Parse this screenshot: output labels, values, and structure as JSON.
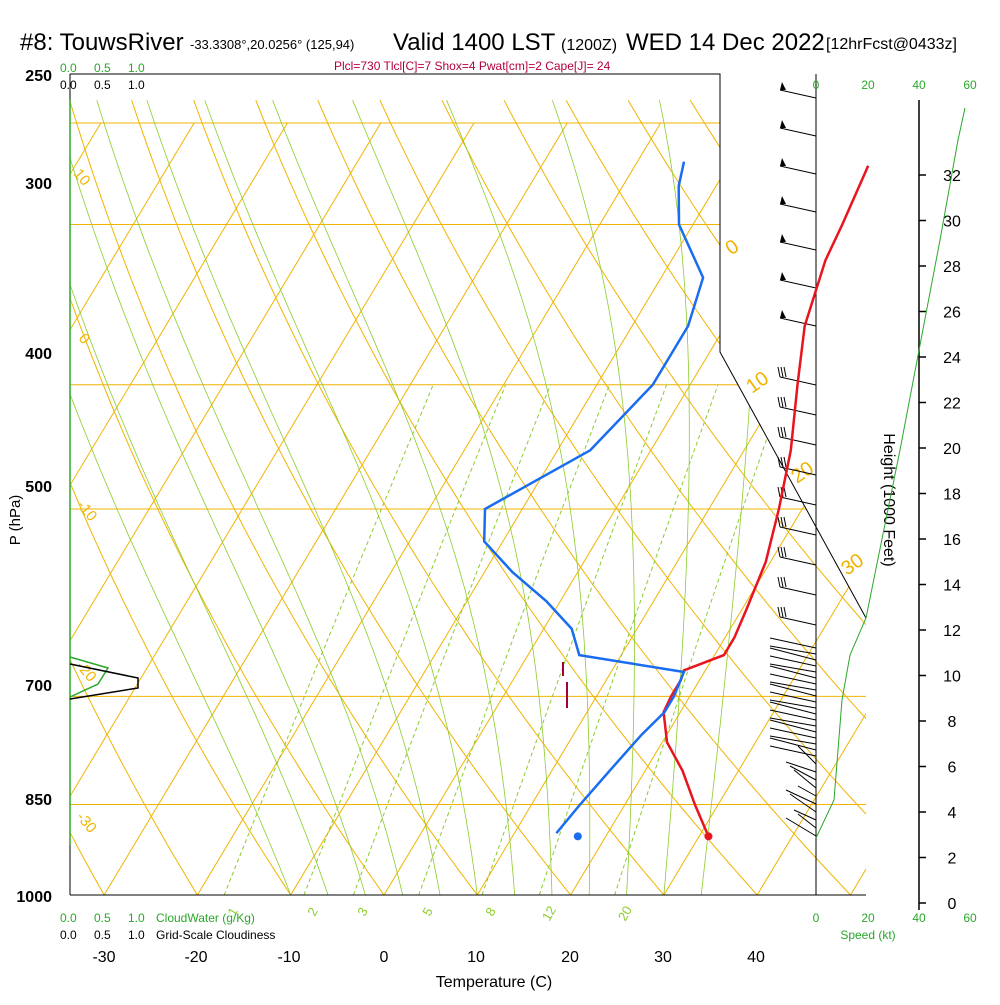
{
  "header": {
    "station": "#8: TouwsRiver",
    "coords": "-33.3308°,20.0256° (125,94)",
    "valid": "Valid 1400 LST",
    "zulu": "(1200Z)",
    "date": "WED 14 Dec 2022",
    "forecast": "[12hrFcst@0433z]",
    "indices": "Plcl=730 Tlcl[C]=7 Shox=4 Pwat[cm]=2 Cape[J]= 24"
  },
  "axes": {
    "xlabel": "Temperature (C)",
    "ylabel": "P (hPa)",
    "height_label": "Height (1000 Feet)",
    "speed_label": "Speed (kt)",
    "cloudwater_label": "CloudWater (g/Kg)",
    "cloudiness_label": "Grid-Scale Cloudiness"
  },
  "colors": {
    "temperature": "#e8141e",
    "dewpoint": "#1a6cf0",
    "isotherm": "#f0b400",
    "dry_adiabat": "#f0b400",
    "moist_adiabat": "#8ccc2c",
    "mixing_ratio": "#8ccc2c",
    "green_text": "#2aa82a",
    "header_red": "#b4003c"
  },
  "chart_data": {
    "type": "line",
    "title": "#8: TouwsRiver Valid 1400 LST WED 14 Dec 2022",
    "x_ticks": [
      "-30",
      "-20",
      "-10",
      "0",
      "10",
      "20",
      "30",
      "40"
    ],
    "x_tick_values": [
      -30,
      -20,
      -10,
      0,
      10,
      20,
      30,
      40
    ],
    "p_ticks": [
      "250",
      "300",
      "400",
      "500",
      "700",
      "850",
      "1000"
    ],
    "p_tick_values": [
      250,
      300,
      400,
      500,
      700,
      850,
      1000
    ],
    "xlim": [
      -35,
      45
    ],
    "ylim": [
      1000,
      250
    ],
    "yscale": "log",
    "height_ticks": [
      "0",
      "2",
      "4",
      "6",
      "8",
      "10",
      "12",
      "14",
      "16",
      "18",
      "20",
      "22",
      "24",
      "26",
      "28",
      "30",
      "32"
    ],
    "cloud_ticks_top_green": [
      "0.0",
      "0.5",
      "1.0"
    ],
    "cloud_ticks_top_black": [
      "0.0",
      "0.5",
      "1.0"
    ],
    "cloud_ticks_bottom_green": [
      "0.0",
      "0.5",
      "1.0"
    ],
    "cloud_ticks_bottom_black": [
      "0.0",
      "0.5",
      "1.0"
    ],
    "speed_ticks_top": [
      "0",
      "20",
      "40",
      "60"
    ],
    "speed_ticks_bottom": [
      "0",
      "20",
      "40",
      "60"
    ],
    "dry_adiabat_labels": [
      "-10",
      "0",
      "10",
      "20",
      "30"
    ],
    "isotherm_labels": [
      "10",
      "0",
      "-10",
      "-20",
      "-30"
    ],
    "mixing_ratio_labels": [
      "1",
      "2",
      "3",
      "5",
      "8",
      "12",
      "20"
    ],
    "series": [
      {
        "name": "Temperature",
        "points": [
          {
            "p": 900,
            "t": 31.0
          },
          {
            "p": 850,
            "t": 27.5
          },
          {
            "p": 800,
            "t": 24.0
          },
          {
            "p": 760,
            "t": 20.5
          },
          {
            "p": 720,
            "t": 18.2
          },
          {
            "p": 700,
            "t": 18.0
          },
          {
            "p": 680,
            "t": 18.0
          },
          {
            "p": 668,
            "t": 17.7
          },
          {
            "p": 650,
            "t": 21.0
          },
          {
            "p": 630,
            "t": 21.0
          },
          {
            "p": 600,
            "t": 20.5
          },
          {
            "p": 550,
            "t": 19.5
          },
          {
            "p": 500,
            "t": 17.5
          },
          {
            "p": 450,
            "t": 15.0
          },
          {
            "p": 400,
            "t": 11.5
          },
          {
            "p": 360,
            "t": 8.5
          },
          {
            "p": 320,
            "t": 6.5
          },
          {
            "p": 300,
            "t": 6.0
          },
          {
            "p": 270,
            "t": 5.0
          }
        ]
      },
      {
        "name": "Dewpoint",
        "points": [
          {
            "p": 895,
            "t": 14.5
          },
          {
            "p": 850,
            "t": 15.2
          },
          {
            "p": 800,
            "t": 16.2
          },
          {
            "p": 750,
            "t": 17.3
          },
          {
            "p": 720,
            "t": 18.3
          },
          {
            "p": 700,
            "t": 18.3
          },
          {
            "p": 670,
            "t": 17.8
          },
          {
            "p": 650,
            "t": 5.5
          },
          {
            "p": 620,
            "t": 3.0
          },
          {
            "p": 590,
            "t": -1.5
          },
          {
            "p": 560,
            "t": -7.0
          },
          {
            "p": 530,
            "t": -12.0
          },
          {
            "p": 500,
            "t": -14.0
          },
          {
            "p": 450,
            "t": -6.5
          },
          {
            "p": 400,
            "t": -4.0
          },
          {
            "p": 360,
            "t": -4.0
          },
          {
            "p": 330,
            "t": -5.5
          },
          {
            "p": 300,
            "t": -11.5
          },
          {
            "p": 280,
            "t": -14.0
          },
          {
            "p": 268,
            "t": -15.0
          }
        ]
      }
    ],
    "surface": {
      "p": 900,
      "t": 31.0,
      "td": 17.0
    }
  }
}
